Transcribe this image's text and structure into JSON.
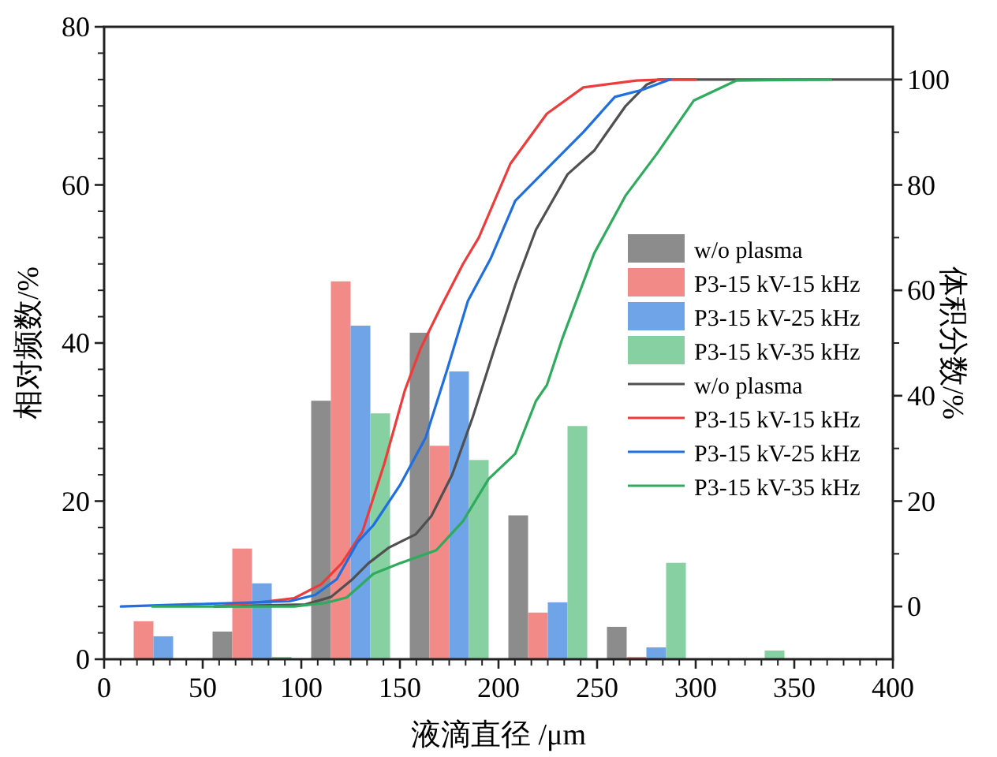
{
  "chart_data": {
    "type": "bar",
    "xlabel": "液滴直径 /μm",
    "ylabel": "相对频数/%",
    "y2label": "体积分数/%",
    "xlim": [
      0,
      400
    ],
    "xticks": [
      0,
      50,
      100,
      150,
      200,
      250,
      300,
      350,
      400
    ],
    "ylim": [
      0,
      80
    ],
    "yticks": [
      0,
      20,
      40,
      60,
      80
    ],
    "y2lim": [
      -10,
      110
    ],
    "y2ticks": [
      0,
      20,
      40,
      60,
      80,
      100
    ],
    "legend": "right",
    "grid": false,
    "series": [
      {
        "name": "w/o plasma",
        "color": "#8c8c8c",
        "x": [
          60,
          110,
          160,
          210,
          260
        ],
        "values": [
          3.5,
          32.7,
          41.3,
          18.2,
          4.1
        ]
      },
      {
        "name": "P3-15 kV-15 kHz",
        "color": "#f28a88",
        "x": [
          20,
          70,
          120,
          170,
          220,
          270
        ],
        "values": [
          4.8,
          14,
          47.8,
          27,
          5.9,
          0.3
        ]
      },
      {
        "name": "P3-15 kV-25 kHz",
        "color": "#6fa4e8",
        "x": [
          30,
          80,
          130,
          180,
          230,
          280
        ],
        "values": [
          2.9,
          9.6,
          42.2,
          36.4,
          7.2,
          1.5
        ]
      },
      {
        "name": "P3-15 kV-35 kHz",
        "color": "#86d0a2",
        "x": [
          90,
          140,
          190,
          240,
          290,
          340
        ],
        "values": [
          0.3,
          31.1,
          25.2,
          29.5,
          12.2,
          1.1
        ]
      },
      {
        "name": "w/o plasma",
        "type": "line",
        "axis": "y2",
        "color": "#505050",
        "x": [
          56,
          102,
          115,
          126,
          134,
          144.5,
          158,
          166,
          176.5,
          187,
          198,
          208.5,
          219,
          235,
          248.5,
          264.5,
          275,
          281,
          400
        ],
        "values": [
          0,
          0.4,
          1.8,
          5.2,
          8.2,
          11.2,
          13.7,
          17.2,
          25,
          36,
          49,
          61,
          71.5,
          82,
          86.5,
          95,
          99,
          100,
          100
        ]
      },
      {
        "name": "P3-15 kV-15 kHz",
        "type": "line",
        "axis": "y2",
        "color": "#ee3b3b",
        "x": [
          56,
          83,
          96.5,
          110,
          120.5,
          131,
          142,
          152.5,
          160.5,
          171,
          182,
          190,
          206,
          224.5,
          243,
          270,
          283,
          300
        ],
        "values": [
          0,
          1,
          1.6,
          4.2,
          8.2,
          14.2,
          27,
          41,
          49,
          57,
          65,
          70,
          84,
          93.5,
          98.5,
          99.8,
          100,
          100
        ]
      },
      {
        "name": "P3-15 kV-25 kHz",
        "type": "line",
        "axis": "y2",
        "color": "#1f6fe0",
        "x": [
          8.5,
          94,
          107,
          118,
          128.5,
          136.5,
          150,
          163,
          174,
          184.5,
          196,
          208.5,
          227,
          243,
          259,
          272.5,
          287
        ],
        "values": [
          0,
          1,
          2.2,
          5.2,
          12.2,
          15.4,
          23,
          32,
          45,
          58,
          66,
          77,
          84,
          90,
          96.7,
          98,
          100
        ]
      },
      {
        "name": "P3-15 kV-35 kHz",
        "type": "line",
        "axis": "y2",
        "color": "#2eab5c",
        "x": [
          24.5,
          96.5,
          112.5,
          123,
          136.5,
          150,
          168.5,
          182,
          195,
          208.5,
          219,
          224.5,
          232.5,
          248.5,
          264.5,
          280.5,
          299,
          320.5,
          368.5
        ],
        "values": [
          0,
          0,
          0.7,
          1.7,
          6.2,
          8.2,
          10.7,
          16.2,
          24.2,
          29,
          39,
          42,
          51,
          67,
          78,
          86,
          96,
          99.8,
          100
        ]
      }
    ]
  }
}
